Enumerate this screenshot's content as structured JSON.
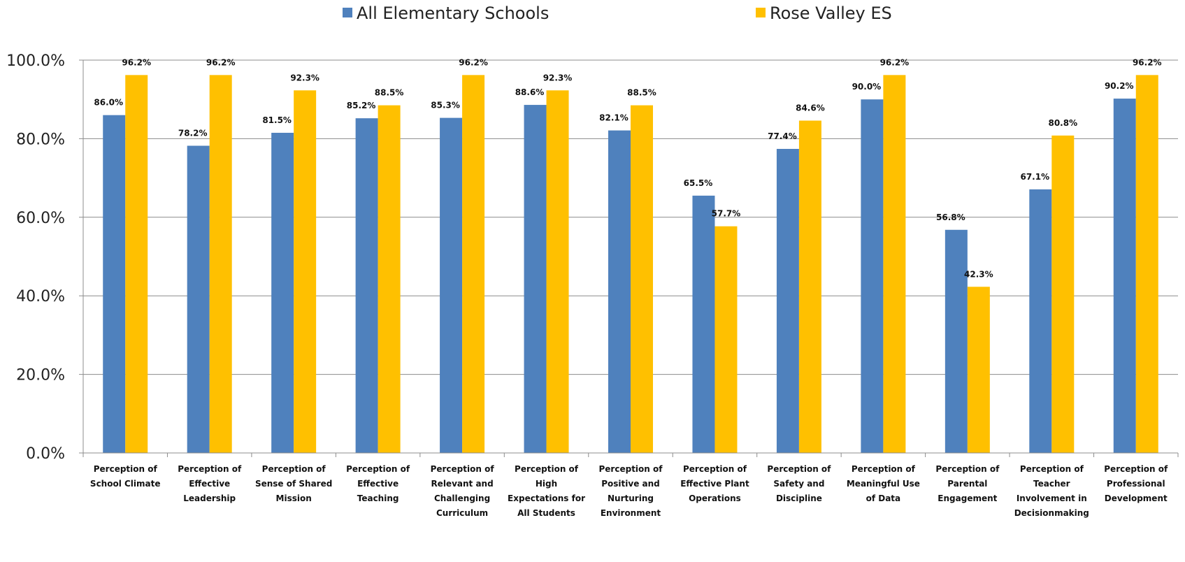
{
  "chart_data": {
    "type": "bar",
    "title": "",
    "xlabel": "",
    "ylabel": "",
    "ylim": [
      0,
      100
    ],
    "yticks": [
      "0.0%",
      "20.0%",
      "40.0%",
      "60.0%",
      "80.0%",
      "100.0%"
    ],
    "legend_position": "top",
    "grid": true,
    "categories": [
      [
        "Perception of",
        "School Climate"
      ],
      [
        "Perception of",
        "Effective",
        "Leadership"
      ],
      [
        "Perception of",
        "Sense of Shared",
        "Mission"
      ],
      [
        "Perception of",
        "Effective",
        "Teaching"
      ],
      [
        "Perception of",
        "Relevant and",
        "Challenging",
        "Curriculum"
      ],
      [
        "Perception of",
        "High",
        "Expectations for",
        "All Students"
      ],
      [
        "Perception of",
        "Positive and",
        "Nurturing",
        "Environment"
      ],
      [
        "Perception of",
        "Effective Plant",
        "Operations"
      ],
      [
        "Perception of",
        "Safety and",
        "Discipline"
      ],
      [
        "Perception of",
        "Meaningful Use",
        "of Data"
      ],
      [
        "Perception of",
        "Parental",
        "Engagement"
      ],
      [
        "Perception of",
        "Teacher",
        "Involvement in",
        "Decisionmaking"
      ],
      [
        "Perception of",
        "Professional",
        "Development"
      ]
    ],
    "series": [
      {
        "name": "All Elementary Schools",
        "color": "#4F81BD",
        "values": [
          86.0,
          78.2,
          81.5,
          85.2,
          85.3,
          88.6,
          82.1,
          65.5,
          77.4,
          90.0,
          56.8,
          67.1,
          90.2
        ],
        "labels": [
          "86.0%",
          "78.2%",
          "81.5%",
          "85.2%",
          "85.3%",
          "88.6%",
          "82.1%",
          "65.5%",
          "77.4%",
          "90.0%",
          "56.8%",
          "67.1%",
          "90.2%"
        ]
      },
      {
        "name": "Rose Valley ES",
        "color": "#FFC000",
        "values": [
          96.2,
          96.2,
          92.3,
          88.5,
          96.2,
          92.3,
          88.5,
          57.7,
          84.6,
          96.2,
          42.3,
          80.8,
          96.2
        ],
        "labels": [
          "96.2%",
          "96.2%",
          "92.3%",
          "88.5%",
          "96.2%",
          "92.3%",
          "88.5%",
          "57.7%",
          "84.6%",
          "96.2%",
          "42.3%",
          "80.8%",
          "96.2%"
        ]
      }
    ]
  }
}
